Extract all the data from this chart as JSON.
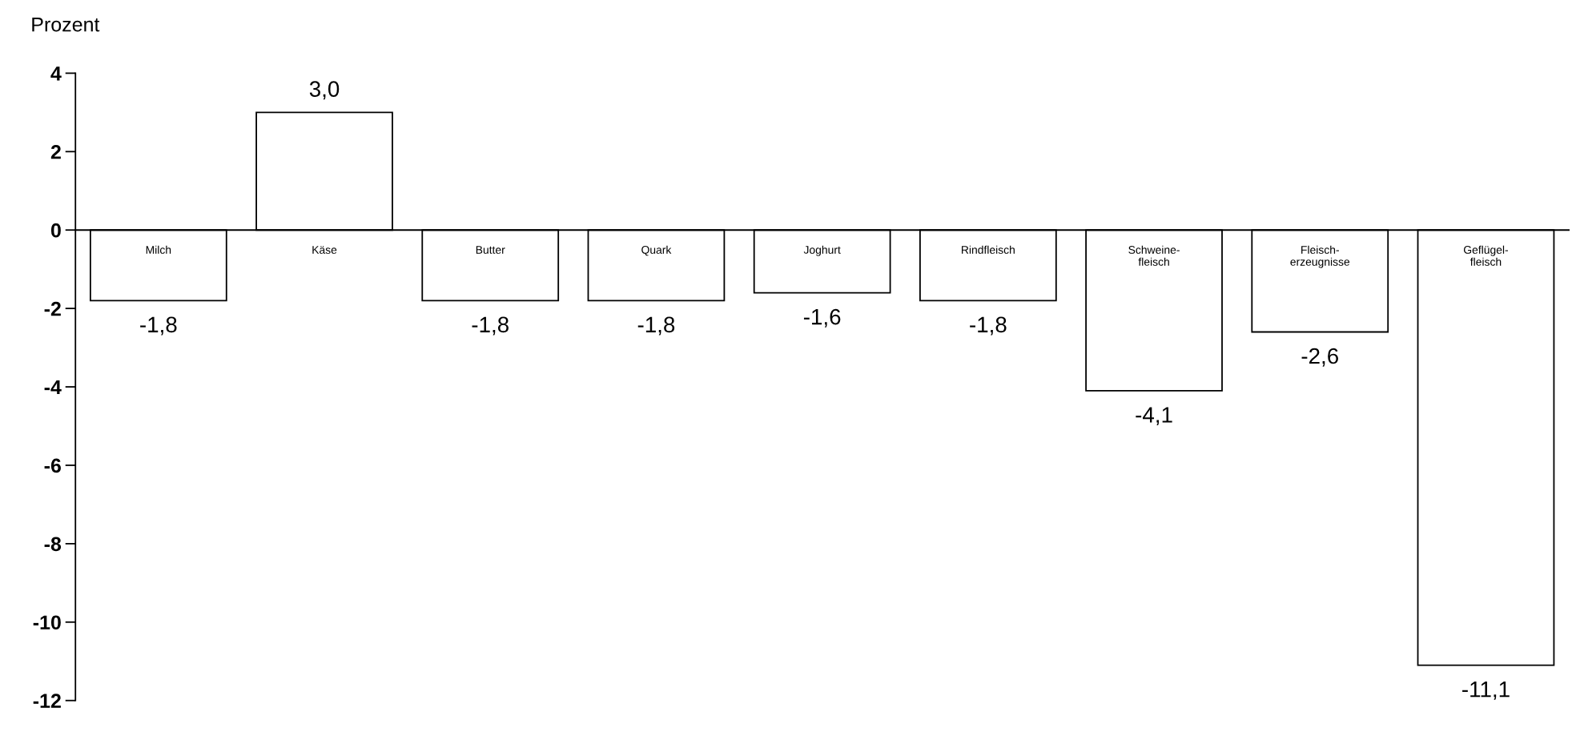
{
  "chart_data": {
    "type": "bar",
    "ylabel": "Prozent",
    "categories": [
      "Milch",
      "Käse",
      "Butter",
      "Quark",
      "Joghurt",
      "Rindfleisch",
      "Schweine-\nfleisch",
      "Fleisch-\nerzeugnisse",
      "Geflügel-\nfleisch"
    ],
    "values": [
      -1.8,
      3.0,
      -1.8,
      -1.8,
      -1.6,
      -1.8,
      -4.1,
      -2.6,
      -11.1
    ],
    "value_labels": [
      "-1,8",
      "3,0",
      "-1,8",
      "-1,8",
      "-1,6",
      "-1,8",
      "-4,1",
      "-2,6",
      "-11,1"
    ],
    "color": "#ffffff",
    "ylim": [
      -12,
      4
    ],
    "yticks": [
      -12,
      -10,
      -8,
      -6,
      -4,
      -2,
      0,
      2,
      4
    ],
    "grid": false,
    "legend": false
  }
}
